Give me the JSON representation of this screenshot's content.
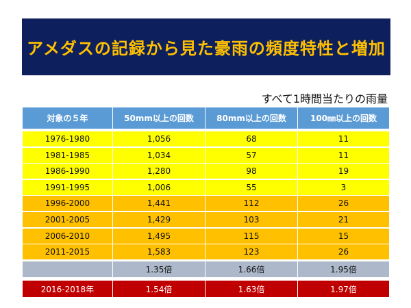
{
  "header": {
    "title": "アメダスの記録から見た豪雨の頻度特性と増加",
    "note": "すべて1時間当たりの雨量"
  },
  "table": {
    "columns": [
      "対象の５年",
      "50mm以上の回数",
      "80mm以上の回数",
      "100㎜以上の回数"
    ],
    "rows": [
      [
        "1976-1980",
        "1,056",
        "68",
        "11"
      ],
      [
        "1981-1985",
        "1,034",
        "57",
        "11"
      ],
      [
        "1986-1990",
        "1,280",
        "98",
        "19"
      ],
      [
        "1991-1995",
        "1,006",
        "55",
        "3"
      ],
      [
        "1996-2000",
        "1,441",
        "112",
        "26"
      ],
      [
        "2001-2005",
        "1,429",
        "103",
        "21"
      ],
      [
        "2006-2010",
        "1,495",
        "115",
        "15"
      ],
      [
        "2011-2015",
        "1,583",
        "123",
        "26"
      ]
    ],
    "ratio_row": [
      "1.35倍",
      "1.66倍",
      "1.95倍"
    ],
    "recent_row": [
      "2016-2018年",
      "1.54倍",
      "1.63倍",
      "1.97倍"
    ]
  }
}
